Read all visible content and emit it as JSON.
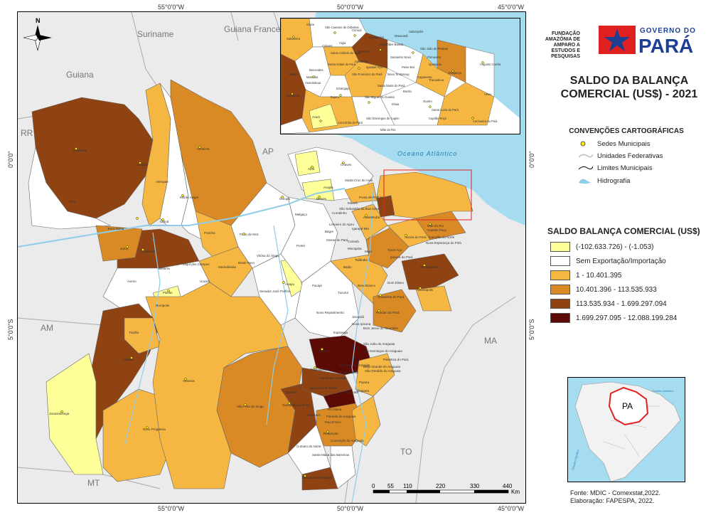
{
  "title_line1": "SALDO DA BALANÇA",
  "title_line2": "COMERCIAL (US$) - 2021",
  "logo_fapespa": [
    "FUNDAÇÃO AMAZÔNIA DE",
    "AMPARO A ESTUDOS E",
    "PESQUISAS"
  ],
  "logo_gov_top": "GOVERNO DO",
  "logo_gov_bottom": "PARÁ",
  "conventions": {
    "title": "CONVENÇÕES CARTOGRÁFICAS",
    "items": [
      "Sedes Municipais",
      "Unidades Federativas",
      "Limites Municipais",
      "Hidrografia"
    ]
  },
  "legend": {
    "title": "SALDO BALANÇA COMERCIAL (US$)",
    "classes": [
      {
        "label": "(-102.633.726) - (-1.053)",
        "color": "#ffff99"
      },
      {
        "label": "Sem Exportação/Importação",
        "color": "#ffffff"
      },
      {
        "label": "1 - 10.401.395",
        "color": "#f5b642"
      },
      {
        "label": "10.401.396 - 113.535.933",
        "color": "#d98a24"
      },
      {
        "label": "113.535.934 - 1.699.297.094",
        "color": "#8f4312"
      },
      {
        "label": "1.699.297.095 - 12.088.199.284",
        "color": "#5c0a05"
      }
    ]
  },
  "coords": {
    "top": [
      "55°0'0\"W",
      "50°0'0\"W",
      "45°0'0\"W"
    ],
    "bottom": [
      "55°0'0\"W",
      "50°0'0\"W",
      "45°0'0\"W"
    ],
    "left": [
      "0°0'0\"",
      "5°0'0\"S"
    ],
    "right": [
      "0°0'0\"",
      "5°0'0\"S"
    ]
  },
  "neighbors": [
    "Suriname",
    "Guiana Francesa",
    "Guiana",
    "RR",
    "AP",
    "AM",
    "MA",
    "TO",
    "MT"
  ],
  "ocean": "Oceano Atlântico",
  "north": "N",
  "scale": {
    "ticks": [
      "0",
      "55",
      "110",
      "220",
      "330",
      "440"
    ],
    "unit": "Km"
  },
  "locator": {
    "label": "PA",
    "ocean": "Oceano Atlântico",
    "pacific": "Oceano Pacífico"
  },
  "source": [
    "Fonte: MDIC - Comexstat,2022.",
    "Elaboração: FAPESPA, 2022."
  ],
  "municipalities": [
    "Oriximiná",
    "Óbidos",
    "Alenquer",
    "Almeirim",
    "Monte Alegre",
    "Faro",
    "Terra Santa",
    "Curuá",
    "Prainha",
    "Porto de Moz",
    "Gurupá",
    "Juruti",
    "Santarém",
    "Belterra",
    "Mojuí dos Campos",
    "Medicilândia",
    "Uruará",
    "Aveiro",
    "Placas",
    "Rurópolis",
    "Itaituba",
    "Trairão",
    "Jacareacanga",
    "Novo Progresso",
    "Altamira",
    "São Félix do Xingu",
    "Ourilândia do Norte",
    "Tucumã",
    "Marabá",
    "Parauapebas",
    "Canaã dos Carajás",
    "Curionópolis",
    "Eldorado dos Carajás",
    "Xinguara",
    "Redenção",
    "Santana do Araguaia",
    "Santa Maria das Barreiras",
    "Cumaru do Norte",
    "Bannach",
    "Rio Maria",
    "Pau D'Arco",
    "Conceição do Araguaia",
    "Floresta do Araguaia",
    "Água Azul do Norte",
    "Sapucaia",
    "Piçarra",
    "São Geraldo do Araguaia",
    "São Domingos do Araguaia",
    "São João do Araguaia",
    "Palestina do Pará",
    "Brejo Grande do Araguaia",
    "Bom Jesus do Tocantins",
    "Itupiranga",
    "Nova Ipixuna",
    "Jacundá",
    "Rondon do Pará",
    "Goianésia do Pará",
    "Breu Branco",
    "Tucuruí",
    "Novo Repartimento",
    "Pacajá",
    "Anapu",
    "Senador José Porfírio",
    "Vitória do Xingu",
    "Brasil Novo",
    "Portel",
    "Bagre",
    "Oeiras do Pará",
    "Cametá",
    "Mocajuba",
    "Baião",
    "Tailândia",
    "Moju",
    "Tomé-Açu",
    "Paragominas",
    "Ulianópolis",
    "Dom Eliseu",
    "Ipixuna do Pará",
    "Aurora do Pará",
    "Mãe do Rio",
    "Capitão Poço",
    "Nova Esperança do Piriá",
    "Garrafão do Norte",
    "Abaetetuba",
    "Igarapé-Miri",
    "Limoeiro do Ajuru",
    "Breves",
    "Melgaço",
    "Curralinho",
    "São Sebastião da Boa Vista",
    "Muaná",
    "Ponta de Pedras",
    "Afuá",
    "Chaves",
    "Anajás",
    "Santa Cruz do Arari"
  ],
  "inset_municipalities": [
    "Salvaterra",
    "Soure",
    "São Caetano de Odivelas",
    "Curuçá",
    "Marapanim",
    "Magalhães Barata",
    "Maracanã",
    "Salinópolis",
    "São João de Pirabas",
    "Primavera",
    "Quatipuru",
    "Bragança",
    "Augusto Corrêa",
    "Viseu",
    "Capanema",
    "Tracuateua",
    "Peixe-Boi",
    "Nova Timboteua",
    "Santarém Novo",
    "Igarapé-Açu",
    "Castanhal",
    "Santa Izabel do Pará",
    "Benevides",
    "Marituba",
    "Ananindeua",
    "Belém",
    "Barcarena",
    "Santo Antônio do Tauá",
    "Vigia",
    "Colares",
    "Terra Alta",
    "São Francisco do Pará",
    "Inhangapi",
    "Bujaru",
    "Concórdia do Pará",
    "Acará",
    "São Domingos do Capim",
    "Irituia",
    "Ourém",
    "Santa Luzia do Pará",
    "Cachoeira do Piriá",
    "São Miguel do Guamá",
    "Mãe do Rio",
    "Santa Maria do Pará",
    "Bonito",
    "Capitão Poço"
  ]
}
